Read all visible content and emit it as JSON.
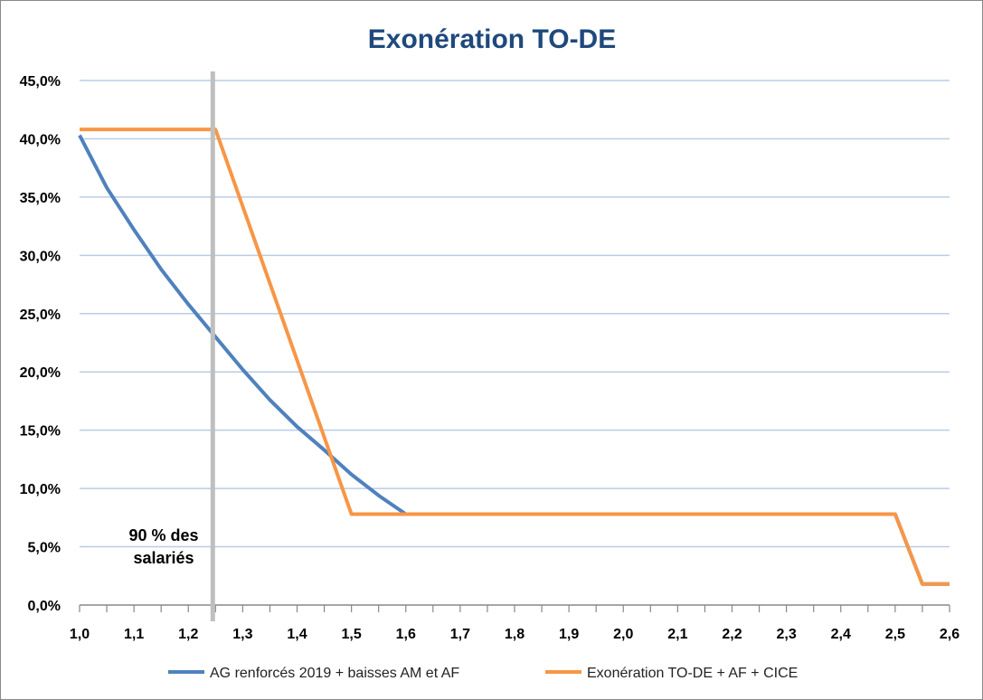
{
  "chart_data": {
    "type": "line",
    "title": "Exonération TO-DE",
    "xlabel": "",
    "ylabel": "",
    "xlim": [
      1.0,
      2.6
    ],
    "ylim": [
      0,
      45
    ],
    "x_ticks": [
      "1,0",
      "1,1",
      "1,2",
      "1,3",
      "1,4",
      "1,5",
      "1,6",
      "1,7",
      "1,8",
      "1,9",
      "2,0",
      "2,1",
      "2,2",
      "2,3",
      "2,4",
      "2,5",
      "2,6"
    ],
    "y_ticks": [
      "0,0%",
      "5,0%",
      "10,0%",
      "15,0%",
      "20,0%",
      "25,0%",
      "30,0%",
      "35,0%",
      "40,0%",
      "45,0%"
    ],
    "grid": true,
    "legend_position": "bottom",
    "series": [
      {
        "name": "AG renforcés 2019 + baisses AM et AF",
        "color": "#4F81BD",
        "x": [
          1.0,
          1.05,
          1.1,
          1.15,
          1.2,
          1.25,
          1.3,
          1.35,
          1.4,
          1.45,
          1.5,
          1.55,
          1.6,
          2.5,
          2.55,
          2.6
        ],
        "y": [
          40.3,
          35.8,
          32.2,
          28.8,
          25.8,
          23.0,
          20.2,
          17.6,
          15.3,
          13.3,
          11.2,
          9.4,
          7.8,
          7.8,
          1.8,
          1.8
        ]
      },
      {
        "name": "Exonération TO-DE + AF + CICE",
        "color": "#F79646",
        "x": [
          1.0,
          1.25,
          1.5,
          2.5,
          2.55,
          2.6
        ],
        "y": [
          40.8,
          40.8,
          7.8,
          7.8,
          1.8,
          1.8
        ]
      }
    ],
    "annotation": {
      "x": 1.245,
      "text_lines": [
        "90 % des",
        "salariés"
      ],
      "color": "#BFBFBF"
    },
    "title_color": "#1F497D",
    "grid_color": "#B9CDE5"
  }
}
